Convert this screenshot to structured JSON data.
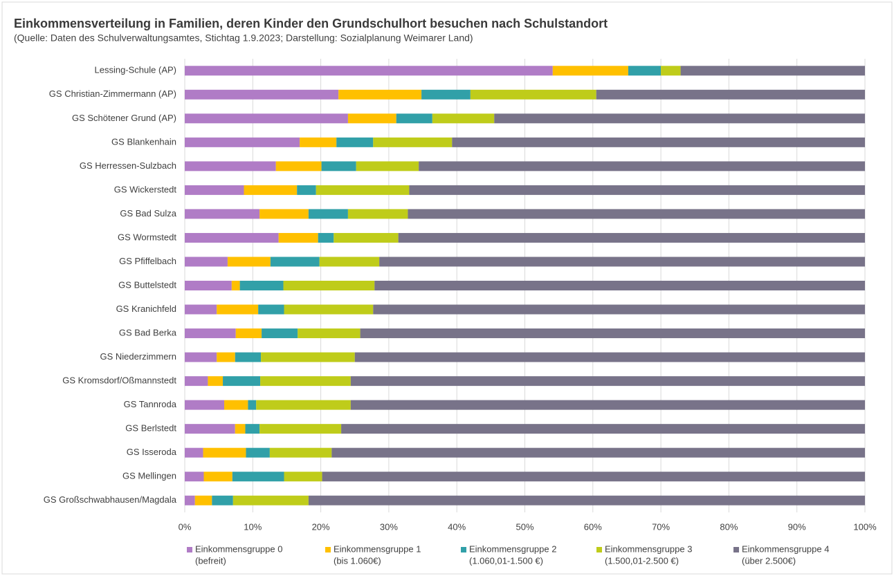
{
  "chart_data": {
    "type": "stacked_barh",
    "title": "Einkommensverteilung in Familien, deren Kinder den Grundschulhort besuchen nach Schulstandort",
    "subtitle": "(Quelle: Daten des Schulverwaltungsamtes, Stichtag 1.9.2023; Darstellung: Sozialplanung Weimarer Land)",
    "categories": [
      "Lessing-Schule (AP)",
      "GS Christian-Zimmermann (AP)",
      "GS Schötener Grund (AP)",
      "GS Blankenhain",
      "GS Herressen-Sulzbach",
      "GS Wickerstedt",
      "GS Bad Sulza",
      "GS Wormstedt",
      "GS Pfiffelbach",
      "GS Buttelstedt",
      "GS Kranichfeld",
      "GS Bad Berka",
      "GS Niederzimmern",
      "GS Kromsdorf/Oßmannstedt",
      "GS Tannroda",
      "GS Berlstedt",
      "GS Isseroda",
      "GS Mellingen",
      "GS Großschwabhausen/Magdala"
    ],
    "series": [
      {
        "name": "Einkommensgruppe 0",
        "description": "(befreit)",
        "color": "#b07cc6",
        "values": [
          54.1,
          22.6,
          24.0,
          16.9,
          13.4,
          8.7,
          11.0,
          13.8,
          6.3,
          6.9,
          4.7,
          7.5,
          4.7,
          3.4,
          5.8,
          7.4,
          2.7,
          2.8,
          1.5
        ]
      },
      {
        "name": "Einkommensgruppe 1",
        "description": "(bis 1.060€)",
        "color": "#ffc000",
        "values": [
          11.1,
          12.2,
          7.1,
          5.4,
          6.7,
          7.8,
          7.2,
          5.8,
          6.3,
          1.2,
          6.1,
          3.8,
          2.7,
          2.2,
          3.5,
          1.5,
          6.3,
          4.2,
          2.5
        ]
      },
      {
        "name": "Einkommensgruppe 2",
        "description": "(1.060,01-1.500 €)",
        "color": "#31a0a8",
        "values": [
          4.8,
          7.2,
          5.3,
          5.4,
          5.1,
          2.8,
          5.8,
          2.3,
          7.2,
          6.4,
          3.8,
          5.3,
          3.8,
          5.5,
          1.2,
          2.1,
          3.5,
          7.6,
          3.1
        ]
      },
      {
        "name": "Einkommensgruppe 3",
        "description": "(1.500,01-2.500 €)",
        "color": "#bfcc1a",
        "values": [
          2.9,
          18.5,
          9.1,
          11.6,
          9.2,
          13.7,
          8.8,
          9.5,
          8.8,
          13.4,
          13.1,
          9.2,
          13.8,
          13.3,
          13.9,
          12.0,
          9.1,
          5.6,
          11.1
        ]
      },
      {
        "name": "Einkommensgruppe 4",
        "description": "(über 2.500€)",
        "color": "#787389",
        "values": [
          27.1,
          39.5,
          54.5,
          60.7,
          65.6,
          67.0,
          67.2,
          68.6,
          71.4,
          72.1,
          72.3,
          74.2,
          75.0,
          75.6,
          75.6,
          77.0,
          78.4,
          79.8,
          81.8
        ]
      }
    ],
    "xlim": [
      0,
      100
    ],
    "xticks": [
      {
        "value": 0,
        "label": "0%"
      },
      {
        "value": 10,
        "label": "10%"
      },
      {
        "value": 20,
        "label": "20%"
      },
      {
        "value": 30,
        "label": "30%"
      },
      {
        "value": 40,
        "label": "40%"
      },
      {
        "value": 50,
        "label": "50%"
      },
      {
        "value": 60,
        "label": "60%"
      },
      {
        "value": 70,
        "label": "70%"
      },
      {
        "value": 80,
        "label": "80%"
      },
      {
        "value": 90,
        "label": "90%"
      },
      {
        "value": 100,
        "label": "100%"
      }
    ],
    "grid": true,
    "legend": "bottom"
  }
}
